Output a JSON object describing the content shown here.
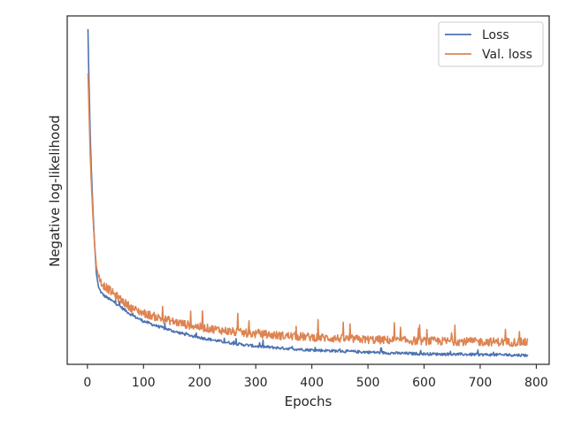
{
  "chart_data": {
    "type": "line",
    "title": "",
    "xlabel": "Epochs",
    "ylabel": "Negative log-likelihood",
    "xlim": [
      -36,
      823
    ],
    "ylim": [
      0.0,
      1.0
    ],
    "xticks": [
      0,
      100,
      200,
      300,
      400,
      500,
      600,
      700,
      800
    ],
    "xtick_labels": [
      "0",
      "100",
      "200",
      "300",
      "400",
      "500",
      "600",
      "700",
      "800"
    ],
    "yticks_visible": false,
    "grid": false,
    "legend": {
      "position": "top-right"
    },
    "series": [
      {
        "name": "Loss",
        "color": "#4c72b0",
        "noise": 0.004,
        "x": [
          1,
          2,
          3,
          4,
          5,
          7,
          10,
          13,
          16,
          20,
          25,
          30,
          40,
          50,
          60,
          70,
          80,
          100,
          120,
          140,
          160,
          180,
          200,
          230,
          260,
          300,
          350,
          400,
          450,
          500,
          550,
          600,
          650,
          700,
          750,
          785
        ],
        "y": [
          0.962,
          0.87,
          0.8,
          0.73,
          0.66,
          0.56,
          0.44,
          0.34,
          0.26,
          0.22,
          0.205,
          0.197,
          0.186,
          0.176,
          0.164,
          0.152,
          0.14,
          0.124,
          0.112,
          0.102,
          0.092,
          0.084,
          0.077,
          0.068,
          0.06,
          0.052,
          0.046,
          0.041,
          0.038,
          0.035,
          0.032,
          0.03,
          0.029,
          0.028,
          0.027,
          0.026
        ]
      },
      {
        "name": "Val. loss",
        "color": "#dd8452",
        "noise": 0.012,
        "x": [
          1,
          2,
          3,
          4,
          5,
          7,
          10,
          13,
          16,
          20,
          25,
          30,
          40,
          50,
          60,
          70,
          80,
          100,
          120,
          140,
          160,
          180,
          200,
          230,
          260,
          300,
          350,
          400,
          450,
          500,
          550,
          600,
          650,
          700,
          750,
          785
        ],
        "y": [
          0.835,
          0.78,
          0.72,
          0.66,
          0.6,
          0.52,
          0.42,
          0.34,
          0.28,
          0.25,
          0.235,
          0.225,
          0.212,
          0.198,
          0.185,
          0.172,
          0.16,
          0.147,
          0.137,
          0.128,
          0.12,
          0.113,
          0.107,
          0.1,
          0.093,
          0.087,
          0.082,
          0.078,
          0.074,
          0.071,
          0.069,
          0.067,
          0.066,
          0.065,
          0.064,
          0.063
        ]
      }
    ]
  }
}
